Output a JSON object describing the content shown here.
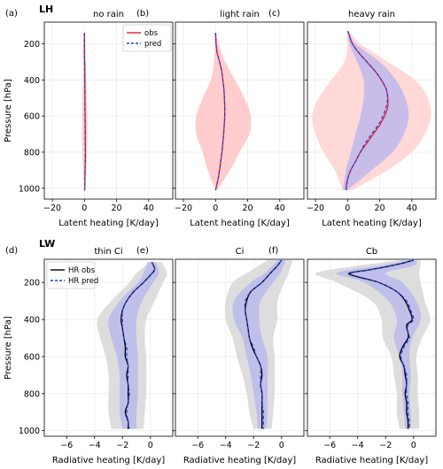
{
  "figure": {
    "row_labels": [
      "LH",
      "LW"
    ]
  },
  "chart_data": [
    {
      "type": "line",
      "panel_label": "(a)",
      "title": "no rain",
      "xlabel": "Latent heating [K/day]",
      "ylabel": "Pressure [hPa]",
      "xlim": [
        -25,
        55
      ],
      "ylim": [
        1060,
        80
      ],
      "grid": true,
      "xticks": [
        -20,
        0,
        20,
        40
      ],
      "yticks": [
        200,
        400,
        600,
        800,
        1000
      ],
      "legend": {
        "placement": "top-right",
        "entries": [
          "obs",
          "pred"
        ]
      },
      "band_outer": {
        "color": "#ffc8c8",
        "p": [
          140,
          300,
          500,
          700,
          850,
          1010
        ],
        "lo": [
          -0.5,
          -0.8,
          -1.2,
          -1.5,
          -1.0,
          -0.3
        ],
        "hi": [
          0.5,
          0.8,
          1.5,
          2.0,
          1.5,
          0.3
        ]
      },
      "series": [
        {
          "name": "obs",
          "color": "#e8202a",
          "dash": "solid",
          "p": [
            140,
            200,
            300,
            400,
            500,
            600,
            700,
            800,
            850,
            900,
            1000,
            1010
          ],
          "x": [
            0,
            0,
            0.1,
            0.2,
            0.3,
            0.4,
            0.5,
            0.6,
            0.5,
            0.4,
            0.2,
            0.1
          ]
        },
        {
          "name": "pred",
          "color": "#1f3fd6",
          "dash": "dashed",
          "p": [
            140,
            200,
            300,
            400,
            500,
            600,
            700,
            800,
            850,
            900,
            1000,
            1010
          ],
          "x": [
            0,
            0,
            0.1,
            0.2,
            0.3,
            0.4,
            0.5,
            0.6,
            0.5,
            0.4,
            0.2,
            0.1
          ]
        }
      ]
    },
    {
      "type": "line",
      "panel_label": "(b)",
      "title": "light rain",
      "xlabel": "Latent heating [K/day]",
      "ylabel": "",
      "xlim": [
        -25,
        55
      ],
      "ylim": [
        1060,
        80
      ],
      "grid": true,
      "xticks": [
        -20,
        0,
        20,
        40
      ],
      "yticks": [
        200,
        400,
        600,
        800,
        1000
      ],
      "band_outer": {
        "color": "#ffc8c8",
        "p": [
          140,
          200,
          300,
          400,
          500,
          600,
          700,
          800,
          900,
          1010
        ],
        "lo": [
          -0.5,
          -0.5,
          -1.0,
          -3.0,
          -8.0,
          -12.0,
          -12.0,
          -8.0,
          -5.0,
          0.0
        ],
        "hi": [
          0.5,
          2.0,
          6.0,
          12.0,
          18.0,
          22.0,
          21.0,
          15.0,
          9.0,
          1.0
        ]
      },
      "series": [
        {
          "name": "obs",
          "color": "#e8202a",
          "dash": "solid",
          "p": [
            140,
            200,
            250,
            300,
            350,
            400,
            450,
            500,
            550,
            600,
            650,
            700,
            750,
            800,
            850,
            900,
            950,
            1010
          ],
          "x": [
            0,
            0.3,
            1.0,
            2.5,
            3.8,
            4.5,
            5.2,
            5.5,
            5.7,
            5.7,
            5.4,
            5.0,
            4.5,
            4.0,
            3.2,
            2.5,
            1.5,
            0.0
          ]
        },
        {
          "name": "pred",
          "color": "#1f3fd6",
          "dash": "dashed",
          "p": [
            140,
            200,
            250,
            300,
            350,
            400,
            450,
            500,
            550,
            600,
            650,
            700,
            750,
            800,
            850,
            900,
            950,
            1010
          ],
          "x": [
            0,
            0.3,
            1.0,
            2.5,
            3.8,
            4.5,
            5.2,
            5.5,
            5.7,
            5.7,
            5.4,
            5.0,
            4.5,
            4.0,
            3.2,
            2.5,
            1.5,
            0.0
          ]
        }
      ]
    },
    {
      "type": "line",
      "panel_label": "(c)",
      "title": "heavy rain",
      "xlabel": "Latent heating [K/day]",
      "ylabel": "",
      "xlim": [
        -25,
        55
      ],
      "ylim": [
        1060,
        80
      ],
      "grid": true,
      "xticks": [
        -20,
        0,
        20,
        40
      ],
      "yticks": [
        200,
        400,
        600,
        800,
        1000
      ],
      "band_outer": {
        "color": "#ffd4d4",
        "p": [
          130,
          200,
          300,
          400,
          500,
          600,
          700,
          800,
          900,
          1010
        ],
        "lo": [
          0,
          0,
          -2,
          -10,
          -18,
          -22,
          -20,
          -15,
          -8,
          -3
        ],
        "hi": [
          1,
          8,
          25,
          42,
          50,
          52,
          48,
          40,
          25,
          3
        ]
      },
      "band_inner": {
        "color": "#b4b4ee",
        "p": [
          130,
          200,
          300,
          400,
          500,
          600,
          700,
          800,
          900,
          1010
        ],
        "lo": [
          0,
          1,
          6,
          10,
          10,
          8,
          5,
          2,
          -1,
          -3
        ],
        "hi": [
          0,
          5,
          20,
          30,
          36,
          38,
          35,
          28,
          15,
          0
        ]
      },
      "series": [
        {
          "name": "obs",
          "color": "#e8202a",
          "dash": "solid",
          "p": [
            130,
            150,
            200,
            250,
            300,
            350,
            400,
            450,
            500,
            550,
            600,
            650,
            700,
            750,
            800,
            850,
            900,
            950,
            1010
          ],
          "x": [
            0,
            1,
            3,
            7,
            12,
            17,
            21,
            24,
            25,
            25,
            23,
            20,
            16,
            12,
            8,
            5,
            2,
            0,
            -1
          ]
        },
        {
          "name": "pred",
          "color": "#1f3fd6",
          "dash": "dashed",
          "p": [
            130,
            150,
            200,
            250,
            300,
            350,
            400,
            450,
            500,
            550,
            600,
            650,
            700,
            750,
            800,
            850,
            900,
            950,
            1010
          ],
          "x": [
            0,
            1,
            3,
            7,
            12,
            17,
            21,
            24,
            25,
            24,
            22,
            19,
            15,
            11,
            8,
            5,
            2,
            0,
            -1
          ]
        }
      ]
    },
    {
      "type": "line",
      "panel_label": "(d)",
      "title": "thin Ci",
      "xlabel": "Radiative heating [K/day]",
      "ylabel": "Pressure [hPa]",
      "xlim": [
        -7.6,
        1.6
      ],
      "ylim": [
        1030,
        75
      ],
      "grid": true,
      "xticks": [
        -6,
        -4,
        -2,
        0
      ],
      "yticks": [
        200,
        400,
        600,
        800,
        1000
      ],
      "legend": {
        "placement": "top-left",
        "entries": [
          "HR obs",
          "HR pred"
        ]
      },
      "band_outer": {
        "color": "#d9d9d9",
        "p": [
          90,
          150,
          200,
          300,
          400,
          500,
          600,
          700,
          800,
          900,
          990
        ],
        "lo": [
          0,
          -1.0,
          -1.5,
          -2.8,
          -3.8,
          -3.6,
          -3.2,
          -3.0,
          -3.0,
          -3.0,
          -2.8
        ],
        "hi": [
          0.8,
          1.2,
          0.9,
          0.3,
          -0.3,
          -0.4,
          -0.3,
          -0.3,
          -0.3,
          -0.4,
          -0.5
        ]
      },
      "band_inner": {
        "color": "#b4b4ee",
        "p": [
          90,
          150,
          200,
          300,
          400,
          500,
          600,
          700,
          800,
          900,
          990
        ],
        "lo": [
          -0.2,
          -0.5,
          -0.9,
          -2.2,
          -3.0,
          -2.8,
          -2.4,
          -2.2,
          -2.2,
          -2.2,
          -2.0
        ],
        "hi": [
          0.4,
          0.6,
          0.2,
          -0.6,
          -1.0,
          -1.0,
          -0.9,
          -0.9,
          -0.9,
          -1.0,
          -1.0
        ]
      },
      "series": [
        {
          "name": "HR obs",
          "color": "#000000",
          "dash": "solid",
          "p": [
            90,
            130,
            160,
            200,
            250,
            300,
            350,
            400,
            450,
            500,
            550,
            600,
            650,
            700,
            750,
            800,
            850,
            900,
            950,
            990
          ],
          "x": [
            0.1,
            0.3,
            0.0,
            -0.5,
            -1.2,
            -1.7,
            -2.0,
            -2.1,
            -2.0,
            -1.9,
            -1.8,
            -1.8,
            -1.6,
            -1.7,
            -1.6,
            -1.6,
            -1.6,
            -1.8,
            -1.6,
            -1.6
          ]
        },
        {
          "name": "HR pred",
          "color": "#1f3fd6",
          "dash": "dashed",
          "p": [
            90,
            130,
            160,
            200,
            250,
            300,
            350,
            400,
            450,
            500,
            550,
            600,
            650,
            700,
            750,
            800,
            850,
            900,
            950,
            990
          ],
          "x": [
            0.1,
            0.3,
            0.0,
            -0.5,
            -1.2,
            -1.7,
            -2.0,
            -2.0,
            -2.0,
            -1.9,
            -1.7,
            -1.7,
            -1.6,
            -1.6,
            -1.6,
            -1.5,
            -1.6,
            -1.7,
            -1.6,
            -1.5
          ]
        }
      ]
    },
    {
      "type": "line",
      "panel_label": "(e)",
      "title": "Ci",
      "xlabel": "Radiative heating [K/day]",
      "ylabel": "",
      "xlim": [
        -7.6,
        1.6
      ],
      "ylim": [
        1030,
        75
      ],
      "grid": true,
      "xticks": [
        -6,
        -4,
        -2,
        0
      ],
      "yticks": [
        200,
        400,
        600,
        800,
        1000
      ],
      "band_outer": {
        "color": "#d9d9d9",
        "p": [
          80,
          150,
          200,
          300,
          400,
          500,
          600,
          700,
          800,
          900,
          990
        ],
        "lo": [
          -1.0,
          -2.5,
          -3.5,
          -4.0,
          -4.0,
          -3.5,
          -3.2,
          -2.8,
          -2.5,
          -2.3,
          -2.0
        ],
        "hi": [
          0.8,
          0.5,
          0.2,
          -0.3,
          -0.3,
          -0.6,
          -0.5,
          -0.5,
          -0.5,
          -0.6,
          -0.7
        ]
      },
      "band_inner": {
        "color": "#b4b4ee",
        "p": [
          80,
          150,
          200,
          300,
          400,
          500,
          600,
          700,
          800,
          900,
          990
        ],
        "lo": [
          -0.3,
          -1.2,
          -2.2,
          -3.4,
          -3.4,
          -2.8,
          -2.5,
          -2.2,
          -2.0,
          -1.8,
          -1.7
        ],
        "hi": [
          0.3,
          -0.1,
          -0.6,
          -1.5,
          -1.6,
          -1.4,
          -1.0,
          -1.0,
          -1.0,
          -1.0,
          -1.1
        ]
      },
      "series": [
        {
          "name": "HR obs",
          "color": "#000000",
          "dash": "solid",
          "p": [
            80,
            110,
            150,
            200,
            250,
            300,
            350,
            400,
            450,
            500,
            550,
            600,
            650,
            700,
            750,
            800,
            850,
            900,
            950,
            990
          ],
          "x": [
            0.0,
            -0.3,
            -0.8,
            -1.4,
            -2.2,
            -2.5,
            -2.6,
            -2.5,
            -2.4,
            -2.3,
            -2.1,
            -1.8,
            -1.5,
            -1.4,
            -1.5,
            -1.4,
            -1.4,
            -1.4,
            -1.4,
            -1.4
          ]
        },
        {
          "name": "HR pred",
          "color": "#1f3fd6",
          "dash": "dashed",
          "p": [
            80,
            110,
            150,
            200,
            250,
            300,
            350,
            400,
            450,
            500,
            550,
            600,
            650,
            700,
            750,
            800,
            850,
            900,
            950,
            990
          ],
          "x": [
            0.0,
            -0.3,
            -0.8,
            -1.4,
            -2.2,
            -2.6,
            -2.6,
            -2.5,
            -2.4,
            -2.3,
            -2.0,
            -1.8,
            -1.5,
            -1.5,
            -1.5,
            -1.4,
            -1.4,
            -1.3,
            -1.3,
            -1.3
          ]
        }
      ]
    },
    {
      "type": "line",
      "panel_label": "(f)",
      "title": "Cb",
      "xlabel": "Radiative heating [K/day]",
      "ylabel": "",
      "xlim": [
        -7.6,
        1.6
      ],
      "ylim": [
        1030,
        75
      ],
      "grid": true,
      "xticks": [
        -6,
        -4,
        -2,
        0
      ],
      "yticks": [
        200,
        400,
        600,
        800,
        1000
      ],
      "band_outer": {
        "color": "#d9d9d9",
        "p": [
          80,
          110,
          150,
          200,
          300,
          400,
          500,
          600,
          700,
          800,
          900,
          990
        ],
        "lo": [
          -1.0,
          -4.0,
          -7.0,
          -5.5,
          -3.0,
          -2.3,
          -2.2,
          -1.6,
          -1.4,
          -1.2,
          -1.2,
          -1.0
        ],
        "hi": [
          0.5,
          0.5,
          0.4,
          0.5,
          0.8,
          1.2,
          0.6,
          0.2,
          0.3,
          0.3,
          0.4,
          0.4
        ]
      },
      "band_inner": {
        "color": "#b4b4ee",
        "p": [
          80,
          110,
          150,
          200,
          300,
          400,
          500,
          600,
          700,
          800,
          900,
          990
        ],
        "lo": [
          -0.4,
          -2.5,
          -5.5,
          -3.5,
          -1.8,
          -1.2,
          -1.4,
          -1.0,
          -0.8,
          -0.8,
          -0.7,
          -0.6
        ],
        "hi": [
          0.2,
          0.0,
          -2.0,
          -0.8,
          0.2,
          0.5,
          -0.1,
          -0.3,
          -0.2,
          -0.3,
          -0.2,
          -0.2
        ]
      },
      "series": [
        {
          "name": "HR obs",
          "color": "#000000",
          "dash": "solid",
          "p": [
            80,
            100,
            130,
            150,
            170,
            200,
            250,
            300,
            350,
            400,
            430,
            470,
            500,
            550,
            600,
            650,
            700,
            750,
            800,
            850,
            900,
            950,
            990
          ],
          "x": [
            0.0,
            -1.0,
            -3.0,
            -4.6,
            -4.0,
            -2.5,
            -1.2,
            -0.6,
            -0.3,
            -0.1,
            -0.5,
            -0.4,
            -0.4,
            -0.8,
            -1.0,
            -0.7,
            -0.6,
            -0.5,
            -0.6,
            -0.5,
            -0.5,
            -0.4,
            -0.4
          ]
        },
        {
          "name": "HR pred",
          "color": "#1f3fd6",
          "dash": "dashed",
          "p": [
            80,
            100,
            130,
            150,
            170,
            200,
            250,
            300,
            350,
            400,
            430,
            470,
            500,
            550,
            600,
            650,
            700,
            750,
            800,
            850,
            900,
            950,
            990
          ],
          "x": [
            0.0,
            -1.0,
            -3.0,
            -4.5,
            -3.9,
            -2.5,
            -1.2,
            -0.5,
            -0.2,
            0.0,
            -0.4,
            -0.4,
            -0.3,
            -0.7,
            -0.9,
            -0.7,
            -0.5,
            -0.5,
            -0.5,
            -0.4,
            -0.4,
            -0.3,
            -0.3
          ]
        }
      ]
    }
  ]
}
